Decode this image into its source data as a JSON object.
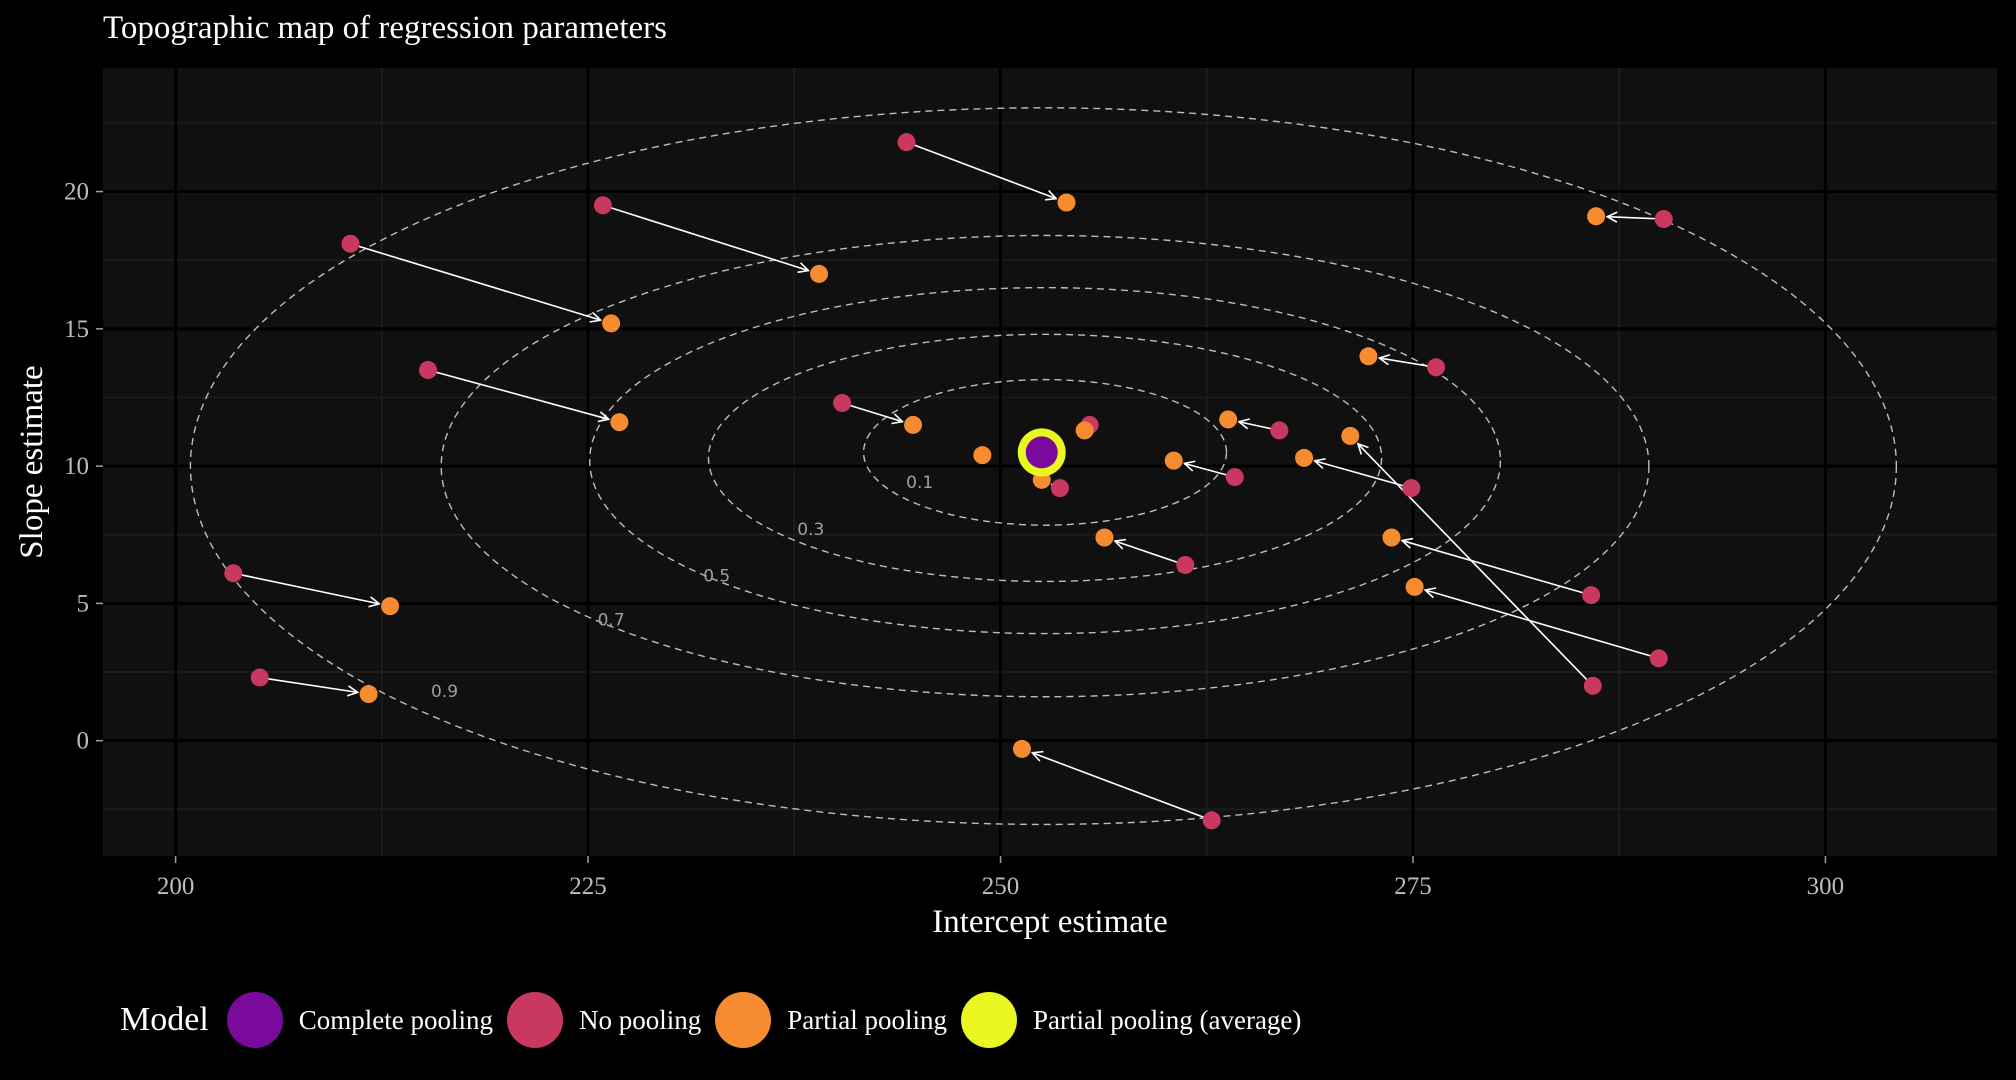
{
  "chart_data": {
    "type": "scatter",
    "title": "Topographic map of regression parameters",
    "xlabel": "Intercept estimate",
    "ylabel": "Slope estimate",
    "xlim": [
      195.6,
      310.4
    ],
    "ylim": [
      -4.2,
      24.5
    ],
    "x_ticks": [
      200,
      225,
      250,
      275,
      300
    ],
    "y_ticks": [
      0,
      5,
      10,
      15,
      20
    ],
    "grid": true,
    "legend_position": "bottom",
    "legend_title": "Model",
    "colors": {
      "complete": "#7a0a9c",
      "none": "#c9395f",
      "partial": "#f68c2f",
      "average": "#eaf61f",
      "background": "#101010",
      "grid_major": "#000000",
      "grid_minor": "#1c1c1c",
      "contour": "#bdbdbd",
      "arrow": "#ffffff"
    },
    "legend_entries": [
      {
        "label": "Complete pooling",
        "color": "#7a0a9c"
      },
      {
        "label": "No pooling",
        "color": "#c9395f"
      },
      {
        "label": "Partial pooling",
        "color": "#f68c2f"
      },
      {
        "label": "Partial pooling (average)",
        "color": "#eaf61f"
      }
    ],
    "contours": [
      {
        "level": "0.1",
        "cx": 252.7,
        "cy": 10.5,
        "rx": 11.0,
        "ry": 2.65,
        "label_x": 245.1,
        "label_y": 9.2
      },
      {
        "level": "0.3",
        "cx": 252.7,
        "cy": 10.3,
        "rx": 20.4,
        "ry": 4.5,
        "label_x": 238.5,
        "label_y": 7.5
      },
      {
        "level": "0.5",
        "cx": 252.7,
        "cy": 10.2,
        "rx": 27.6,
        "ry": 6.3,
        "label_x": 232.8,
        "label_y": 5.8
      },
      {
        "level": "0.7",
        "cx": 252.7,
        "cy": 10.0,
        "rx": 36.6,
        "ry": 8.4,
        "label_x": 226.4,
        "label_y": 4.2
      },
      {
        "level": "0.9",
        "cx": 252.6,
        "cy": 10.0,
        "rx": 51.7,
        "ry": 13.05,
        "label_x": 216.3,
        "label_y": 1.6
      }
    ],
    "no_pooling": [
      [
        244.3,
        21.8
      ],
      [
        225.9,
        19.5
      ],
      [
        210.6,
        18.1
      ],
      [
        215.3,
        13.5
      ],
      [
        240.4,
        12.3
      ],
      [
        203.5,
        6.1
      ],
      [
        205.1,
        2.3
      ],
      [
        262.8,
        -2.9
      ],
      [
        253.6,
        9.2
      ],
      [
        261.2,
        6.4
      ],
      [
        264.2,
        9.6
      ],
      [
        266.9,
        11.3
      ],
      [
        274.9,
        9.2
      ],
      [
        276.4,
        13.6
      ],
      [
        290.2,
        19.0
      ],
      [
        285.8,
        5.3
      ],
      [
        289.9,
        3.0
      ],
      [
        285.9,
        2.0
      ],
      [
        255.4,
        11.5
      ]
    ],
    "partial_pooling": [
      [
        254.0,
        19.6
      ],
      [
        239.0,
        17.0
      ],
      [
        226.4,
        15.2
      ],
      [
        226.9,
        11.6
      ],
      [
        244.7,
        11.5
      ],
      [
        213.0,
        4.9
      ],
      [
        211.7,
        1.7
      ],
      [
        251.3,
        -0.3
      ],
      [
        252.5,
        9.5
      ],
      [
        256.3,
        7.4
      ],
      [
        260.5,
        10.2
      ],
      [
        263.8,
        11.7
      ],
      [
        268.4,
        10.3
      ],
      [
        272.3,
        14.0
      ],
      [
        286.1,
        19.1
      ],
      [
        273.7,
        7.4
      ],
      [
        275.1,
        5.6
      ],
      [
        271.2,
        11.1
      ],
      [
        255.1,
        11.3
      ],
      [
        248.9,
        10.4
      ]
    ],
    "complete_pooling": [
      252.5,
      10.5
    ],
    "partial_pooling_average": [
      252.5,
      10.5
    ]
  }
}
